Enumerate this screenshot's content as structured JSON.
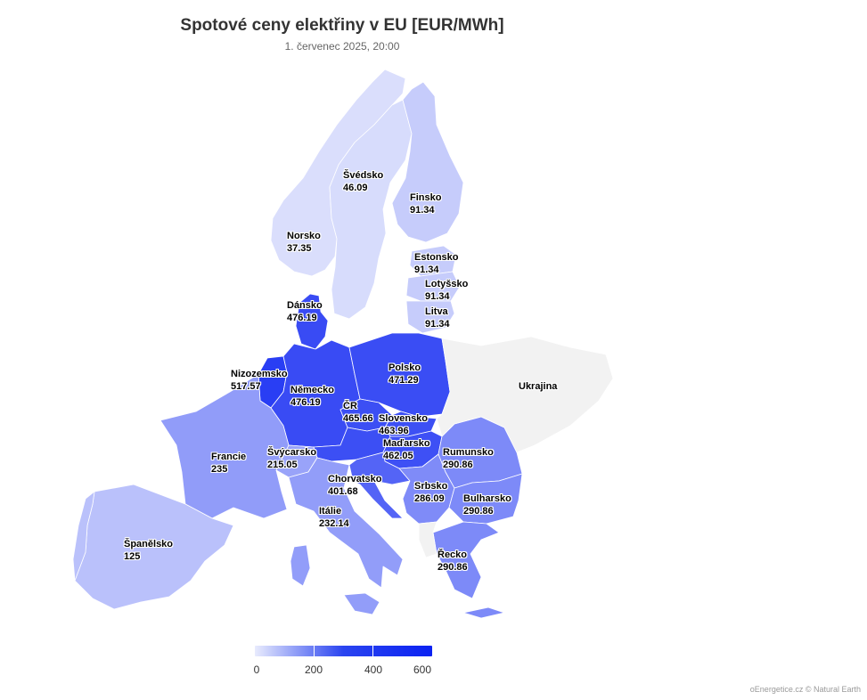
{
  "title": "Spotové ceny elektřiny v EU [EUR/MWh]",
  "subtitle": "1. červenec 2025, 20:00",
  "countries": [
    {
      "key": "norsko",
      "name": "Norsko",
      "value": "37.35"
    },
    {
      "key": "svedsko",
      "name": "Švédsko",
      "value": "46.09"
    },
    {
      "key": "finsko",
      "name": "Finsko",
      "value": "91.34"
    },
    {
      "key": "estonsko",
      "name": "Estonsko",
      "value": "91.34"
    },
    {
      "key": "lotyssko",
      "name": "Lotyšsko",
      "value": "91.34"
    },
    {
      "key": "litva",
      "name": "Litva",
      "value": "91.34"
    },
    {
      "key": "dansko",
      "name": "Dánsko",
      "value": "476.19"
    },
    {
      "key": "nizozemsko",
      "name": "Nizozemsko",
      "value": "517.57"
    },
    {
      "key": "nemecko",
      "name": "Německo",
      "value": "476.19"
    },
    {
      "key": "polsko",
      "name": "Polsko",
      "value": "471.29"
    },
    {
      "key": "cr",
      "name": "ČR",
      "value": "465.66"
    },
    {
      "key": "slovensko",
      "name": "Slovensko",
      "value": "463.96"
    },
    {
      "key": "madarsko",
      "name": "Maďarsko",
      "value": "462.05"
    },
    {
      "key": "francie",
      "name": "Francie",
      "value": "235"
    },
    {
      "key": "svycarsko",
      "name": "Švýcarsko",
      "value": "215.05"
    },
    {
      "key": "chorvatsko",
      "name": "Chorvatsko",
      "value": "401.68"
    },
    {
      "key": "italie",
      "name": "Itálie",
      "value": "232.14"
    },
    {
      "key": "spanelsko",
      "name": "Španělsko",
      "value": "125"
    },
    {
      "key": "rumunsko",
      "name": "Rumunsko",
      "value": "290.86"
    },
    {
      "key": "srbsko",
      "name": "Srbsko",
      "value": "286.09"
    },
    {
      "key": "bulharsko",
      "name": "Bulharsko",
      "value": "290.86"
    },
    {
      "key": "recko",
      "name": "Řecko",
      "value": "290.86"
    },
    {
      "key": "ukrajina",
      "name": "Ukrajina",
      "value": ""
    }
  ],
  "color_scale": {
    "min": 0,
    "max": 600,
    "low": "#e8ebfd",
    "high": "#0b22f2",
    "no_data": "#f2f2f2"
  },
  "legend": {
    "ticks": [
      "0",
      "200",
      "400",
      "600"
    ]
  },
  "credit": "oEnergetice.cz © Natural Earth"
}
